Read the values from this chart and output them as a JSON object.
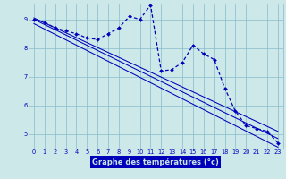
{
  "xlabel": "Graphe des températures (°c)",
  "bg_color": "#cce8e8",
  "line_color": "#0000bb",
  "grid_color": "#88bbcc",
  "xlabel_bg": "#0000bb",
  "xlabel_fg": "#cce8e8",
  "xlim": [
    -0.5,
    23.5
  ],
  "ylim": [
    4.5,
    9.55
  ],
  "xticks": [
    0,
    1,
    2,
    3,
    4,
    5,
    6,
    7,
    8,
    9,
    10,
    11,
    12,
    13,
    14,
    15,
    16,
    17,
    18,
    19,
    20,
    21,
    22,
    23
  ],
  "yticks": [
    5,
    6,
    7,
    8,
    9
  ],
  "temp_x": [
    0,
    1,
    2,
    3,
    4,
    5,
    6,
    7,
    8,
    9,
    10,
    11,
    12,
    13,
    14,
    15,
    16,
    17,
    18,
    19,
    20,
    21,
    22,
    23
  ],
  "temp_y": [
    9.0,
    8.9,
    8.7,
    8.6,
    8.5,
    8.35,
    8.3,
    8.5,
    8.7,
    9.1,
    9.0,
    9.5,
    7.2,
    7.25,
    7.5,
    8.1,
    7.8,
    7.6,
    6.6,
    5.8,
    5.3,
    5.2,
    5.1,
    4.7
  ],
  "trend_lines": [
    [
      9.05,
      5.1
    ],
    [
      9.0,
      4.85
    ],
    [
      8.85,
      4.55
    ]
  ]
}
